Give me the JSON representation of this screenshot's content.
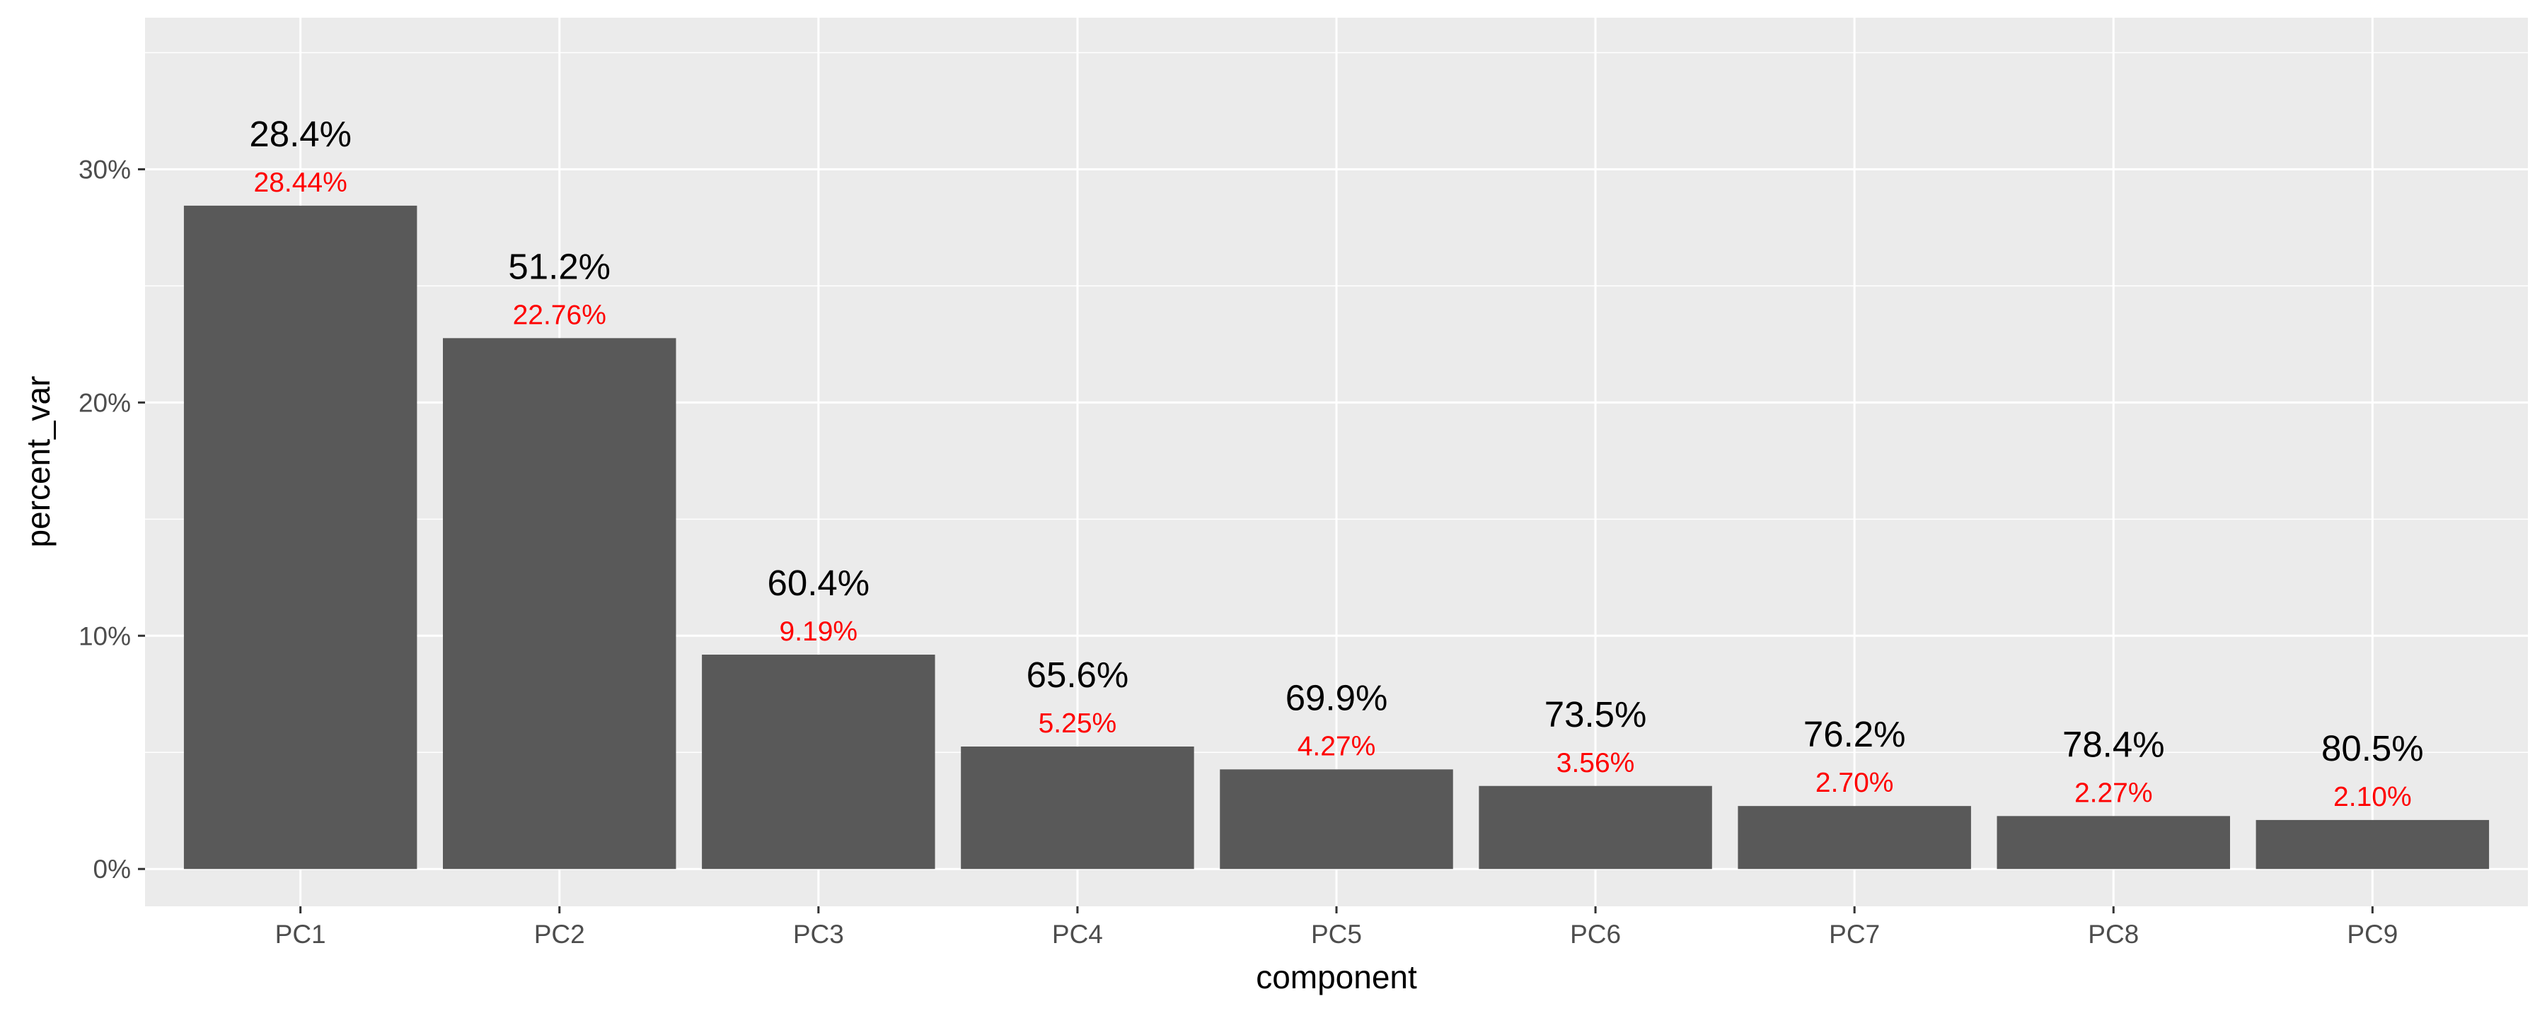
{
  "chart_data": {
    "type": "bar",
    "categories": [
      "PC1",
      "PC2",
      "PC3",
      "PC4",
      "PC5",
      "PC6",
      "PC7",
      "PC8",
      "PC9"
    ],
    "values": [
      28.44,
      22.76,
      9.19,
      5.25,
      4.27,
      3.56,
      2.7,
      2.27,
      2.1
    ],
    "value_labels": [
      "28.44%",
      "22.76%",
      "9.19%",
      "5.25%",
      "4.27%",
      "3.56%",
      "2.70%",
      "2.27%",
      "2.10%"
    ],
    "cumulative_labels": [
      "28.4%",
      "51.2%",
      "60.4%",
      "65.6%",
      "69.9%",
      "73.5%",
      "76.2%",
      "78.4%",
      "80.5%"
    ],
    "xlabel": "component",
    "ylabel": "percent_var",
    "ylim": [
      -1.6,
      36.5
    ],
    "yticks": [
      0,
      10,
      20,
      30
    ],
    "ytick_labels": [
      "0%",
      "10%",
      "20%",
      "30%"
    ],
    "grid": true,
    "colors": {
      "bar": "#595959",
      "panel": "#ebebeb",
      "grid": "#ffffff",
      "value_label": "#ff0000",
      "cumulative_label": "#000000"
    }
  }
}
